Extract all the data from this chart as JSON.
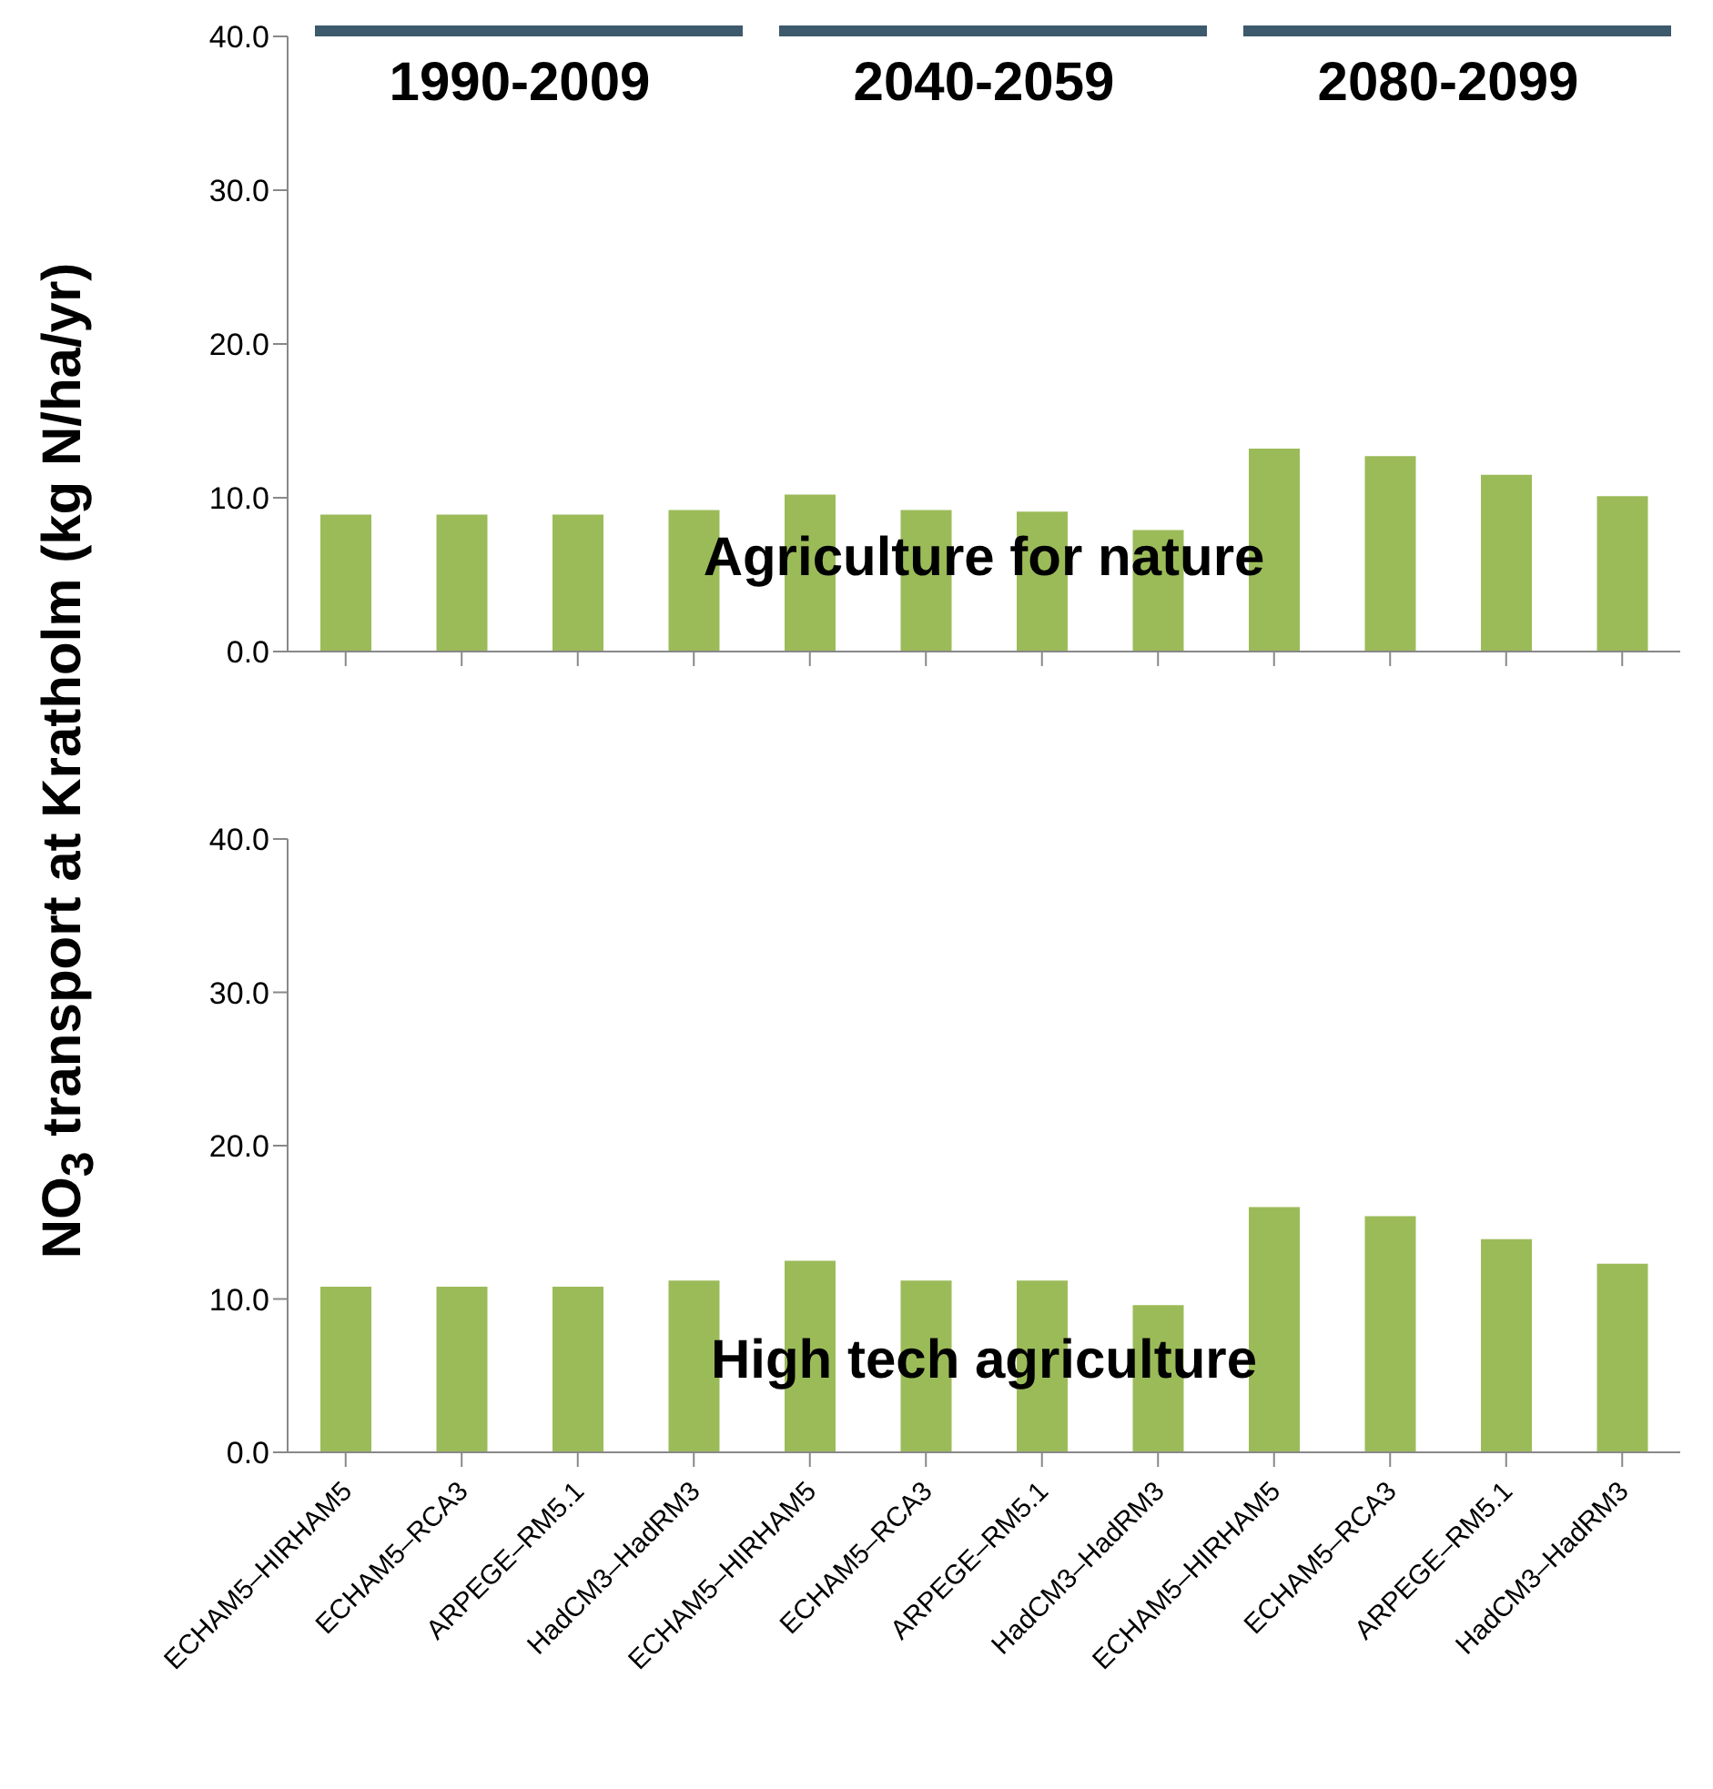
{
  "chart_data": [
    {
      "type": "bar",
      "title": "Agriculture for nature",
      "ylabel": "NO$_{3}$ transport at Kratholm (kg N/ha/yr)",
      "annotations": [
        "1990-2009",
        "2040-2059",
        "2080-2099"
      ],
      "categories": [
        null,
        null,
        null,
        null,
        null,
        null,
        null,
        null,
        null,
        null,
        null,
        null
      ],
      "values": [
        8.9,
        8.9,
        8.9,
        9.2,
        10.2,
        9.2,
        9.1,
        7.9,
        13.2,
        12.7,
        11.5,
        10.1
      ],
      "color": "#9bbb59",
      "ylim": [
        0,
        40
      ],
      "yticks": [
        {
          "value": 0,
          "label": "0.0"
        },
        {
          "value": 10,
          "label": "10.0"
        },
        {
          "value": 20,
          "label": "20.0"
        },
        {
          "value": 30,
          "label": "30.0"
        },
        {
          "value": 40,
          "label": "40.0"
        }
      ],
      "tick_labels": "y",
      "grid": false,
      "legend": false
    },
    {
      "type": "bar",
      "title": "High tech agriculture",
      "categories": [
        "ECHAM5–HIRHAM5",
        "ECHAM5–RCA3",
        "ARPEGE–RM5.1",
        "HadCM3–HadRM3",
        "ECHAM5–HIRHAM5",
        "ECHAM5–RCA3",
        "ARPEGE–RM5.1",
        "HadCM3–HadRM3",
        "ECHAM5–HIRHAM5",
        "ECHAM5–RCA3",
        "ARPEGE–RM5.1",
        "HadCM3–HadRM3"
      ],
      "values": [
        10.8,
        10.8,
        10.8,
        11.2,
        12.5,
        11.2,
        11.2,
        9.6,
        16.0,
        15.4,
        13.9,
        12.3
      ],
      "color": "#9bbb59",
      "ylim": [
        0,
        40
      ],
      "yticks": [
        {
          "value": 0,
          "label": "0.0"
        },
        {
          "value": 10,
          "label": "10.0"
        },
        {
          "value": 20,
          "label": "20.0"
        },
        {
          "value": 30,
          "label": "30.0"
        },
        {
          "value": 40,
          "label": "40.0"
        }
      ],
      "grid": false,
      "legend": false
    }
  ]
}
